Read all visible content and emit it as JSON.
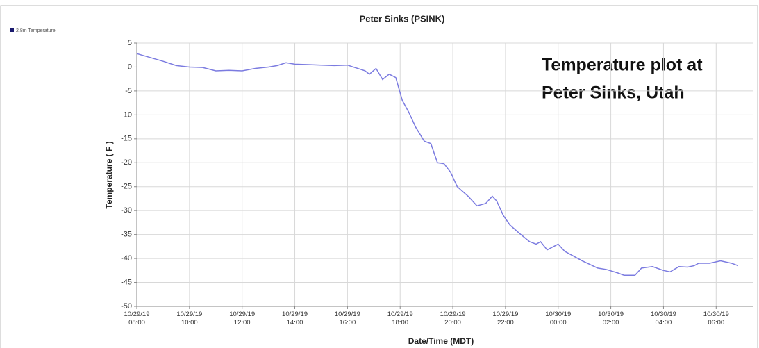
{
  "chart_data": {
    "type": "line",
    "title": "Peter Sinks (PSINK)",
    "annotation": [
      "Temperature plot at",
      "Peter Sinks, Utah"
    ],
    "y_label": "Temperature ( F )",
    "x_label": "Date/Time (MDT)",
    "legend": "top-left",
    "grid": true,
    "ylim": [
      -50,
      5
    ],
    "yticks": [
      -50,
      -45,
      -40,
      -35,
      -30,
      -25,
      -20,
      -15,
      -10,
      -5,
      0,
      5
    ],
    "xlim": [
      "2019-10-29T08:00",
      "2019-10-30T07:25"
    ],
    "xticks": [
      {
        "value": "2019-10-29T08:00",
        "label": "10/29/19 08:00"
      },
      {
        "value": "2019-10-29T10:00",
        "label": "10/29/19 10:00"
      },
      {
        "value": "2019-10-29T12:00",
        "label": "10/29/19 12:00"
      },
      {
        "value": "2019-10-29T14:00",
        "label": "10/29/19 14:00"
      },
      {
        "value": "2019-10-29T16:00",
        "label": "10/29/19 16:00"
      },
      {
        "value": "2019-10-29T18:00",
        "label": "10/29/19 18:00"
      },
      {
        "value": "2019-10-29T20:00",
        "label": "10/29/19 20:00"
      },
      {
        "value": "2019-10-29T22:00",
        "label": "10/29/19 22:00"
      },
      {
        "value": "2019-10-30T00:00",
        "label": "10/30/19 00:00"
      },
      {
        "value": "2019-10-30T02:00",
        "label": "10/30/19 02:00"
      },
      {
        "value": "2019-10-30T04:00",
        "label": "10/30/19 04:00"
      },
      {
        "value": "2019-10-30T06:00",
        "label": "10/30/19 06:00"
      }
    ],
    "x": [
      "2019-10-29T08:00",
      "2019-10-29T08:30",
      "2019-10-29T09:00",
      "2019-10-29T09:30",
      "2019-10-29T10:00",
      "2019-10-29T10:30",
      "2019-10-29T11:00",
      "2019-10-29T11:30",
      "2019-10-29T12:00",
      "2019-10-29T12:30",
      "2019-10-29T13:00",
      "2019-10-29T13:20",
      "2019-10-29T13:40",
      "2019-10-29T14:00",
      "2019-10-29T14:30",
      "2019-10-29T15:00",
      "2019-10-29T15:30",
      "2019-10-29T16:00",
      "2019-10-29T16:20",
      "2019-10-29T16:40",
      "2019-10-29T16:50",
      "2019-10-29T17:05",
      "2019-10-29T17:20",
      "2019-10-29T17:35",
      "2019-10-29T17:50",
      "2019-10-29T18:05",
      "2019-10-29T18:20",
      "2019-10-29T18:35",
      "2019-10-29T18:55",
      "2019-10-29T19:10",
      "2019-10-29T19:25",
      "2019-10-29T19:40",
      "2019-10-29T19:55",
      "2019-10-29T20:10",
      "2019-10-29T20:35",
      "2019-10-29T20:55",
      "2019-10-29T21:15",
      "2019-10-29T21:30",
      "2019-10-29T21:40",
      "2019-10-29T21:55",
      "2019-10-29T22:10",
      "2019-10-29T22:35",
      "2019-10-29T22:55",
      "2019-10-29T23:10",
      "2019-10-29T23:20",
      "2019-10-29T23:35",
      "2019-10-30T00:00",
      "2019-10-30T00:15",
      "2019-10-30T00:55",
      "2019-10-30T01:30",
      "2019-10-30T01:50",
      "2019-10-30T02:15",
      "2019-10-30T02:30",
      "2019-10-30T02:55",
      "2019-10-30T03:10",
      "2019-10-30T03:35",
      "2019-10-30T04:00",
      "2019-10-30T04:15",
      "2019-10-30T04:35",
      "2019-10-30T04:55",
      "2019-10-30T05:10",
      "2019-10-30T05:20",
      "2019-10-30T05:45",
      "2019-10-30T06:10",
      "2019-10-30T06:35",
      "2019-10-30T06:50"
    ],
    "series": [
      {
        "name": "2.8m Temperature",
        "color": "#7b7be0",
        "values": [
          2.8,
          2.0,
          1.2,
          0.3,
          0,
          -0.1,
          -0.8,
          -0.7,
          -0.8,
          -0.3,
          0,
          0.3,
          0.9,
          0.6,
          0.5,
          0.4,
          0.3,
          0.4,
          -0.2,
          -0.8,
          -1.5,
          -0.3,
          -2.6,
          -1.5,
          -2.2,
          -7,
          -9.5,
          -12.5,
          -15.5,
          -16,
          -20,
          -20.2,
          -22,
          -25,
          -27,
          -29,
          -28.5,
          -27,
          -28,
          -31,
          -33,
          -35,
          -36.5,
          -37,
          -36.5,
          -38.2,
          -37,
          -38.5,
          -40.5,
          -42,
          -42.3,
          -43,
          -43.5,
          -43.5,
          -42,
          -41.7,
          -42.5,
          -42.8,
          -41.7,
          -41.8,
          -41.5,
          -41,
          -41,
          -40.5,
          -41,
          -41.5
        ]
      }
    ]
  }
}
